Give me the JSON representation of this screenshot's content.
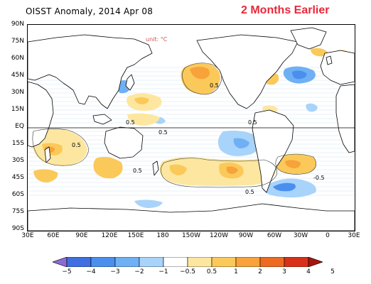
{
  "title": "OISST Anomaly, 2014 Apr 08",
  "badge": "2 Months Earlier",
  "unit_label": "unit: °C",
  "y_axis": [
    "90N",
    "75N",
    "60N",
    "45N",
    "30N",
    "15N",
    "EQ",
    "15S",
    "30S",
    "45S",
    "60S",
    "75S",
    "90S"
  ],
  "x_axis": [
    "30E",
    "60E",
    "90E",
    "120E",
    "150E",
    "180",
    "150W",
    "120W",
    "90W",
    "60W",
    "30W",
    "0",
    "30E"
  ],
  "contour_labels": [
    "0.5",
    "0.5",
    "0.5",
    "0.5",
    "-0.5",
    "0.5",
    "0.5",
    "0.5"
  ],
  "colorbar": {
    "ticks": [
      "−5",
      "−4",
      "−3",
      "−2",
      "−1",
      "−0.5",
      "0.5",
      "1",
      "2",
      "3",
      "4",
      "5"
    ],
    "colors": [
      "#8b6cd6",
      "#3f6fe0",
      "#4a8fee",
      "#6fb0f5",
      "#a8d3fa",
      "#ffffff",
      "#fde7a0",
      "#fbc95a",
      "#f7a23a",
      "#ee6a22",
      "#d9301a",
      "#a8140c"
    ]
  },
  "colors": {
    "ocean": "#ffffff",
    "land_outline": "#000000",
    "warm_light": "#fde7a0",
    "warm_mid": "#fbc95a",
    "warm_strong": "#f7a23a",
    "cool_light": "#a8d3fa",
    "cool_mid": "#6fb0f5",
    "cool_strong": "#4a8fee",
    "badge": "#e8293a"
  }
}
